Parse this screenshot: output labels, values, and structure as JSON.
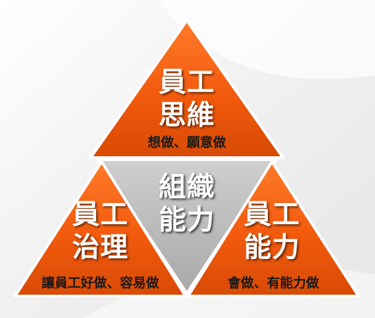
{
  "top": {
    "line1": "員工",
    "line2": "思維",
    "caption": "想做、願意做"
  },
  "center": {
    "line1": "組織",
    "line2": "能力"
  },
  "left": {
    "line1": "員工",
    "line2": "治理",
    "caption": "讓員工好做、容易做"
  },
  "right": {
    "line1": "員工",
    "line2": "能力",
    "caption": "會做、有能力做"
  },
  "colors": {
    "orange": "#f25a0d",
    "orange_dark": "#c63c00",
    "gray": "#bcbcbc",
    "gray_dark": "#8e8e8e",
    "outline": "#ffffff"
  }
}
